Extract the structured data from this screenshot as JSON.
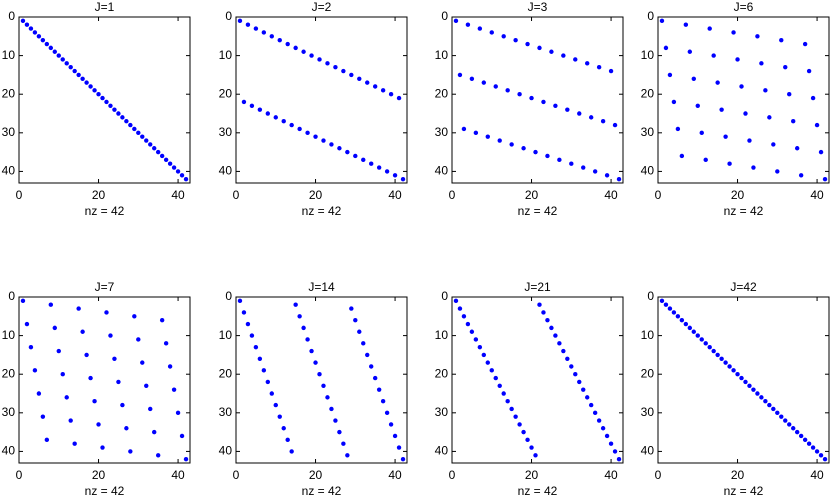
{
  "chart_data": [
    {
      "type": "scatter",
      "title": "J=1",
      "xlabel": "nz = 42",
      "color": "#0000ff",
      "y_reversed": true,
      "xlim": [
        0,
        43
      ],
      "ylim": [
        0,
        43
      ],
      "xticks": [
        0,
        20,
        40
      ],
      "yticks": [
        0,
        10,
        20,
        30,
        40
      ],
      "x": [
        1,
        2,
        3,
        4,
        5,
        6,
        7,
        8,
        9,
        10,
        11,
        12,
        13,
        14,
        15,
        16,
        17,
        18,
        19,
        20,
        21,
        22,
        23,
        24,
        25,
        26,
        27,
        28,
        29,
        30,
        31,
        32,
        33,
        34,
        35,
        36,
        37,
        38,
        39,
        40,
        41,
        42
      ],
      "values": [
        1,
        2,
        3,
        4,
        5,
        6,
        7,
        8,
        9,
        10,
        11,
        12,
        13,
        14,
        15,
        16,
        17,
        18,
        19,
        20,
        21,
        22,
        23,
        24,
        25,
        26,
        27,
        28,
        29,
        30,
        31,
        32,
        33,
        34,
        35,
        36,
        37,
        38,
        39,
        40,
        41,
        42
      ]
    },
    {
      "type": "scatter",
      "title": "J=2",
      "xlabel": "nz = 42",
      "color": "#0000ff",
      "y_reversed": true,
      "xlim": [
        0,
        43
      ],
      "ylim": [
        0,
        43
      ],
      "xticks": [
        0,
        20,
        40
      ],
      "yticks": [
        0,
        10,
        20,
        30,
        40
      ],
      "x": [
        1,
        2,
        3,
        4,
        5,
        6,
        7,
        8,
        9,
        10,
        11,
        12,
        13,
        14,
        15,
        16,
        17,
        18,
        19,
        20,
        21,
        22,
        23,
        24,
        25,
        26,
        27,
        28,
        29,
        30,
        31,
        32,
        33,
        34,
        35,
        36,
        37,
        38,
        39,
        40,
        41,
        42
      ],
      "values": [
        1,
        22,
        2,
        23,
        3,
        24,
        4,
        25,
        5,
        26,
        6,
        27,
        7,
        28,
        8,
        29,
        9,
        30,
        10,
        31,
        11,
        32,
        12,
        33,
        13,
        34,
        14,
        35,
        15,
        36,
        16,
        37,
        17,
        38,
        18,
        39,
        19,
        40,
        20,
        41,
        21,
        42
      ]
    },
    {
      "type": "scatter",
      "title": "J=3",
      "xlabel": "nz = 42",
      "color": "#0000ff",
      "y_reversed": true,
      "xlim": [
        0,
        43
      ],
      "ylim": [
        0,
        43
      ],
      "xticks": [
        0,
        20,
        40
      ],
      "yticks": [
        0,
        10,
        20,
        30,
        40
      ],
      "x": [
        1,
        2,
        3,
        4,
        5,
        6,
        7,
        8,
        9,
        10,
        11,
        12,
        13,
        14,
        15,
        16,
        17,
        18,
        19,
        20,
        21,
        22,
        23,
        24,
        25,
        26,
        27,
        28,
        29,
        30,
        31,
        32,
        33,
        34,
        35,
        36,
        37,
        38,
        39,
        40,
        41,
        42
      ],
      "values": [
        1,
        15,
        29,
        2,
        16,
        30,
        3,
        17,
        31,
        4,
        18,
        32,
        5,
        19,
        33,
        6,
        20,
        34,
        7,
        21,
        35,
        8,
        22,
        36,
        9,
        23,
        37,
        10,
        24,
        38,
        11,
        25,
        39,
        12,
        26,
        40,
        13,
        27,
        41,
        14,
        28,
        42
      ]
    },
    {
      "type": "scatter",
      "title": "J=6",
      "xlabel": "nz = 42",
      "color": "#0000ff",
      "y_reversed": true,
      "xlim": [
        0,
        43
      ],
      "ylim": [
        0,
        43
      ],
      "xticks": [
        0,
        20,
        40
      ],
      "yticks": [
        0,
        10,
        20,
        30,
        40
      ],
      "x": [
        1,
        2,
        3,
        4,
        5,
        6,
        7,
        8,
        9,
        10,
        11,
        12,
        13,
        14,
        15,
        16,
        17,
        18,
        19,
        20,
        21,
        22,
        23,
        24,
        25,
        26,
        27,
        28,
        29,
        30,
        31,
        32,
        33,
        34,
        35,
        36,
        37,
        38,
        39,
        40,
        41,
        42
      ],
      "values": [
        1,
        8,
        15,
        22,
        29,
        36,
        2,
        9,
        16,
        23,
        30,
        37,
        3,
        10,
        17,
        24,
        31,
        38,
        4,
        11,
        18,
        25,
        32,
        39,
        5,
        12,
        19,
        26,
        33,
        40,
        6,
        13,
        20,
        27,
        34,
        41,
        7,
        14,
        21,
        28,
        35,
        42
      ]
    },
    {
      "type": "scatter",
      "title": "J=7",
      "xlabel": "nz = 42",
      "color": "#0000ff",
      "y_reversed": true,
      "xlim": [
        0,
        43
      ],
      "ylim": [
        0,
        43
      ],
      "xticks": [
        0,
        20,
        40
      ],
      "yticks": [
        0,
        10,
        20,
        30,
        40
      ],
      "x": [
        1,
        2,
        3,
        4,
        5,
        6,
        7,
        8,
        9,
        10,
        11,
        12,
        13,
        14,
        15,
        16,
        17,
        18,
        19,
        20,
        21,
        22,
        23,
        24,
        25,
        26,
        27,
        28,
        29,
        30,
        31,
        32,
        33,
        34,
        35,
        36,
        37,
        38,
        39,
        40,
        41,
        42
      ],
      "values": [
        1,
        7,
        13,
        19,
        25,
        31,
        37,
        2,
        8,
        14,
        20,
        26,
        32,
        38,
        3,
        9,
        15,
        21,
        27,
        33,
        39,
        4,
        10,
        16,
        22,
        28,
        34,
        40,
        5,
        11,
        17,
        23,
        29,
        35,
        41,
        6,
        12,
        18,
        24,
        30,
        36,
        42
      ]
    },
    {
      "type": "scatter",
      "title": "J=14",
      "xlabel": "nz = 42",
      "color": "#0000ff",
      "y_reversed": true,
      "xlim": [
        0,
        43
      ],
      "ylim": [
        0,
        43
      ],
      "xticks": [
        0,
        20,
        40
      ],
      "yticks": [
        0,
        10,
        20,
        30,
        40
      ],
      "x": [
        1,
        2,
        3,
        4,
        5,
        6,
        7,
        8,
        9,
        10,
        11,
        12,
        13,
        14,
        15,
        16,
        17,
        18,
        19,
        20,
        21,
        22,
        23,
        24,
        25,
        26,
        27,
        28,
        29,
        30,
        31,
        32,
        33,
        34,
        35,
        36,
        37,
        38,
        39,
        40,
        41,
        42
      ],
      "values": [
        1,
        4,
        7,
        10,
        13,
        16,
        19,
        22,
        25,
        28,
        31,
        34,
        37,
        40,
        2,
        5,
        8,
        11,
        14,
        17,
        20,
        23,
        26,
        29,
        32,
        35,
        38,
        41,
        3,
        6,
        9,
        12,
        15,
        18,
        21,
        24,
        27,
        30,
        33,
        36,
        39,
        42
      ]
    },
    {
      "type": "scatter",
      "title": "J=21",
      "xlabel": "nz = 42",
      "color": "#0000ff",
      "y_reversed": true,
      "xlim": [
        0,
        43
      ],
      "ylim": [
        0,
        43
      ],
      "xticks": [
        0,
        20,
        40
      ],
      "yticks": [
        0,
        10,
        20,
        30,
        40
      ],
      "x": [
        1,
        2,
        3,
        4,
        5,
        6,
        7,
        8,
        9,
        10,
        11,
        12,
        13,
        14,
        15,
        16,
        17,
        18,
        19,
        20,
        21,
        22,
        23,
        24,
        25,
        26,
        27,
        28,
        29,
        30,
        31,
        32,
        33,
        34,
        35,
        36,
        37,
        38,
        39,
        40,
        41,
        42
      ],
      "values": [
        1,
        3,
        5,
        7,
        9,
        11,
        13,
        15,
        17,
        19,
        21,
        23,
        25,
        27,
        29,
        31,
        33,
        35,
        37,
        39,
        41,
        2,
        4,
        6,
        8,
        10,
        12,
        14,
        16,
        18,
        20,
        22,
        24,
        26,
        28,
        30,
        32,
        34,
        36,
        38,
        40,
        42
      ]
    },
    {
      "type": "scatter",
      "title": "J=42",
      "xlabel": "nz = 42",
      "color": "#0000ff",
      "y_reversed": true,
      "xlim": [
        0,
        43
      ],
      "ylim": [
        0,
        43
      ],
      "xticks": [
        0,
        20,
        40
      ],
      "yticks": [
        0,
        10,
        20,
        30,
        40
      ],
      "x": [
        1,
        2,
        3,
        4,
        5,
        6,
        7,
        8,
        9,
        10,
        11,
        12,
        13,
        14,
        15,
        16,
        17,
        18,
        19,
        20,
        21,
        22,
        23,
        24,
        25,
        26,
        27,
        28,
        29,
        30,
        31,
        32,
        33,
        34,
        35,
        36,
        37,
        38,
        39,
        40,
        41,
        42
      ],
      "values": [
        1,
        2,
        3,
        4,
        5,
        6,
        7,
        8,
        9,
        10,
        11,
        12,
        13,
        14,
        15,
        16,
        17,
        18,
        19,
        20,
        21,
        22,
        23,
        24,
        25,
        26,
        27,
        28,
        29,
        30,
        31,
        32,
        33,
        34,
        35,
        36,
        37,
        38,
        39,
        40,
        41,
        42
      ]
    }
  ]
}
